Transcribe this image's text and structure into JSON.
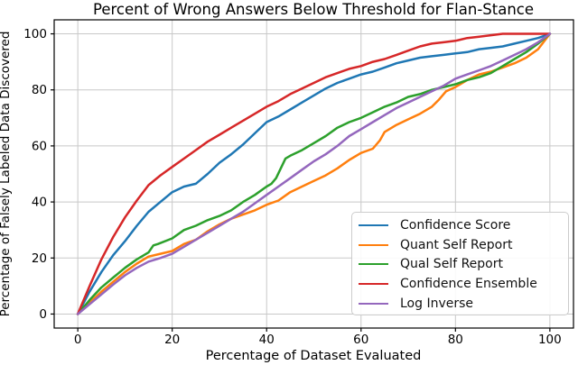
{
  "figure": {
    "background": "#ffffff",
    "grid_color": "#c8c8c8",
    "spine_color": "#000000",
    "text_color": "#000000"
  },
  "chart_data": {
    "type": "line",
    "title": "Percent of Wrong Answers Below Threshold for Flan-Stance",
    "xlabel": "Percentage of Dataset Evaluated",
    "ylabel": "Percentage of Falsely Labeled Data Discovered",
    "xticks": [
      0,
      20,
      40,
      60,
      80,
      100
    ],
    "yticks": [
      0,
      20,
      40,
      60,
      80,
      100
    ],
    "xlim": [
      -5,
      105
    ],
    "ylim": [
      -5,
      105
    ],
    "grid": true,
    "legend_position": "lower right",
    "series": [
      {
        "name": "Confidence Score",
        "color": "#1f77b4",
        "x": [
          0,
          2.5,
          5,
          7.5,
          10,
          12.5,
          15,
          17.5,
          20,
          22.5,
          25,
          27.5,
          30,
          32.5,
          35,
          37.5,
          40,
          42.5,
          45,
          47.5,
          50,
          52.5,
          55,
          57.5,
          60,
          62.5,
          65,
          67.5,
          70,
          72.5,
          75,
          77.5,
          80,
          82.5,
          85,
          87.5,
          90,
          92.5,
          95,
          97.5,
          100
        ],
        "y": [
          0,
          8,
          15,
          21,
          26,
          31.5,
          36.5,
          40,
          43.5,
          45.5,
          46.5,
          50,
          54,
          57,
          60.5,
          64.5,
          68.5,
          70.5,
          73,
          75.5,
          78,
          80.5,
          82.5,
          84,
          85.5,
          86.5,
          88,
          89.5,
          90.5,
          91.5,
          92,
          92.5,
          93,
          93.5,
          94.5,
          95,
          95.5,
          96.5,
          97.5,
          98.5,
          100
        ]
      },
      {
        "name": "Quant Self Report",
        "color": "#ff7f0e",
        "x": [
          0,
          2.5,
          5,
          7.5,
          10,
          12.5,
          15,
          17.5,
          20,
          22.5,
          25,
          27.5,
          30,
          32.5,
          35,
          37.5,
          40,
          42.5,
          45,
          47.5,
          50,
          52.5,
          55,
          57.5,
          60,
          62.5,
          64,
          65,
          67.5,
          70,
          72.5,
          75,
          76.5,
          78,
          80,
          82.5,
          85,
          87.5,
          90,
          92.5,
          95,
          97.5,
          100
        ],
        "y": [
          0,
          4,
          8,
          11.5,
          15,
          18,
          20.5,
          21.5,
          22.5,
          25,
          26.5,
          29.5,
          32,
          34,
          35.5,
          37,
          39,
          40.5,
          43.5,
          45.5,
          47.5,
          49.5,
          52,
          55,
          57.5,
          59,
          62,
          65,
          67.5,
          69.5,
          71.5,
          74,
          76.5,
          79.5,
          81,
          83.5,
          85.5,
          86.5,
          88,
          89.5,
          91.5,
          94.5,
          100
        ]
      },
      {
        "name": "Qual Self Report",
        "color": "#2ca02c",
        "x": [
          0,
          2.5,
          5,
          7.5,
          10,
          12.5,
          15,
          16,
          17,
          20,
          22.5,
          25,
          27.5,
          30,
          32.5,
          35,
          37.5,
          40,
          41,
          42,
          43,
          44,
          45,
          47.5,
          50,
          52.5,
          55,
          57.5,
          60,
          62.5,
          65,
          67.5,
          70,
          72.5,
          75,
          77.5,
          80,
          82.5,
          85,
          87.5,
          90,
          92.5,
          95,
          97.5,
          100
        ],
        "y": [
          0,
          5,
          9.5,
          13,
          16.5,
          19.5,
          22,
          24.5,
          25,
          27,
          30,
          31.5,
          33.5,
          35,
          37,
          40,
          42.5,
          45.5,
          46.5,
          48.5,
          52,
          55.5,
          56.5,
          58.5,
          61,
          63.5,
          66.5,
          68.5,
          70,
          72,
          74,
          75.5,
          77.5,
          78.5,
          80,
          81,
          82,
          83.5,
          84.5,
          86,
          88.5,
          91,
          93.5,
          96.5,
          100
        ]
      },
      {
        "name": "Confidence Ensemble",
        "color": "#d62728",
        "x": [
          0,
          2.5,
          5,
          7.5,
          10,
          12.5,
          15,
          17.5,
          20,
          22.5,
          25,
          27.5,
          30,
          32.5,
          35,
          37.5,
          40,
          42.5,
          45,
          47.5,
          50,
          52.5,
          55,
          57.5,
          60,
          62.5,
          65,
          67.5,
          70,
          72.5,
          75,
          77.5,
          80,
          82.5,
          85,
          87.5,
          90,
          92.5,
          95,
          97.5,
          100
        ],
        "y": [
          0,
          10,
          19.5,
          27.5,
          34.5,
          40.5,
          46,
          49.5,
          52.5,
          55.5,
          58.5,
          61.5,
          64,
          66.5,
          69,
          71.5,
          74,
          76,
          78.5,
          80.5,
          82.5,
          84.5,
          86,
          87.5,
          88.5,
          90,
          91,
          92.5,
          94,
          95.5,
          96.5,
          97,
          97.5,
          98.5,
          99,
          99.5,
          100,
          100,
          100,
          100,
          100
        ]
      },
      {
        "name": "Log Inverse",
        "color": "#9467bd",
        "x": [
          0,
          2.5,
          5,
          7.5,
          10,
          12.5,
          15,
          17.5,
          20,
          22.5,
          25,
          27.5,
          30,
          32.5,
          35,
          37.5,
          40,
          42.5,
          45,
          47.5,
          50,
          52.5,
          55,
          57.5,
          60,
          62.5,
          65,
          67.5,
          70,
          72.5,
          75,
          77.5,
          80,
          82.5,
          85,
          87.5,
          90,
          92.5,
          95,
          97.5,
          100
        ],
        "y": [
          0,
          3.5,
          7,
          10.5,
          13.8,
          16.5,
          18.7,
          20,
          21.5,
          24,
          26.5,
          29,
          31.5,
          34,
          36.5,
          39.5,
          42.5,
          45.5,
          48.5,
          51.5,
          54.5,
          57,
          60,
          63.5,
          66,
          68.5,
          71,
          73.5,
          75.5,
          77.5,
          79.5,
          81.5,
          84,
          85.5,
          87,
          88.5,
          90.5,
          92.5,
          94.5,
          97,
          100
        ]
      }
    ]
  }
}
